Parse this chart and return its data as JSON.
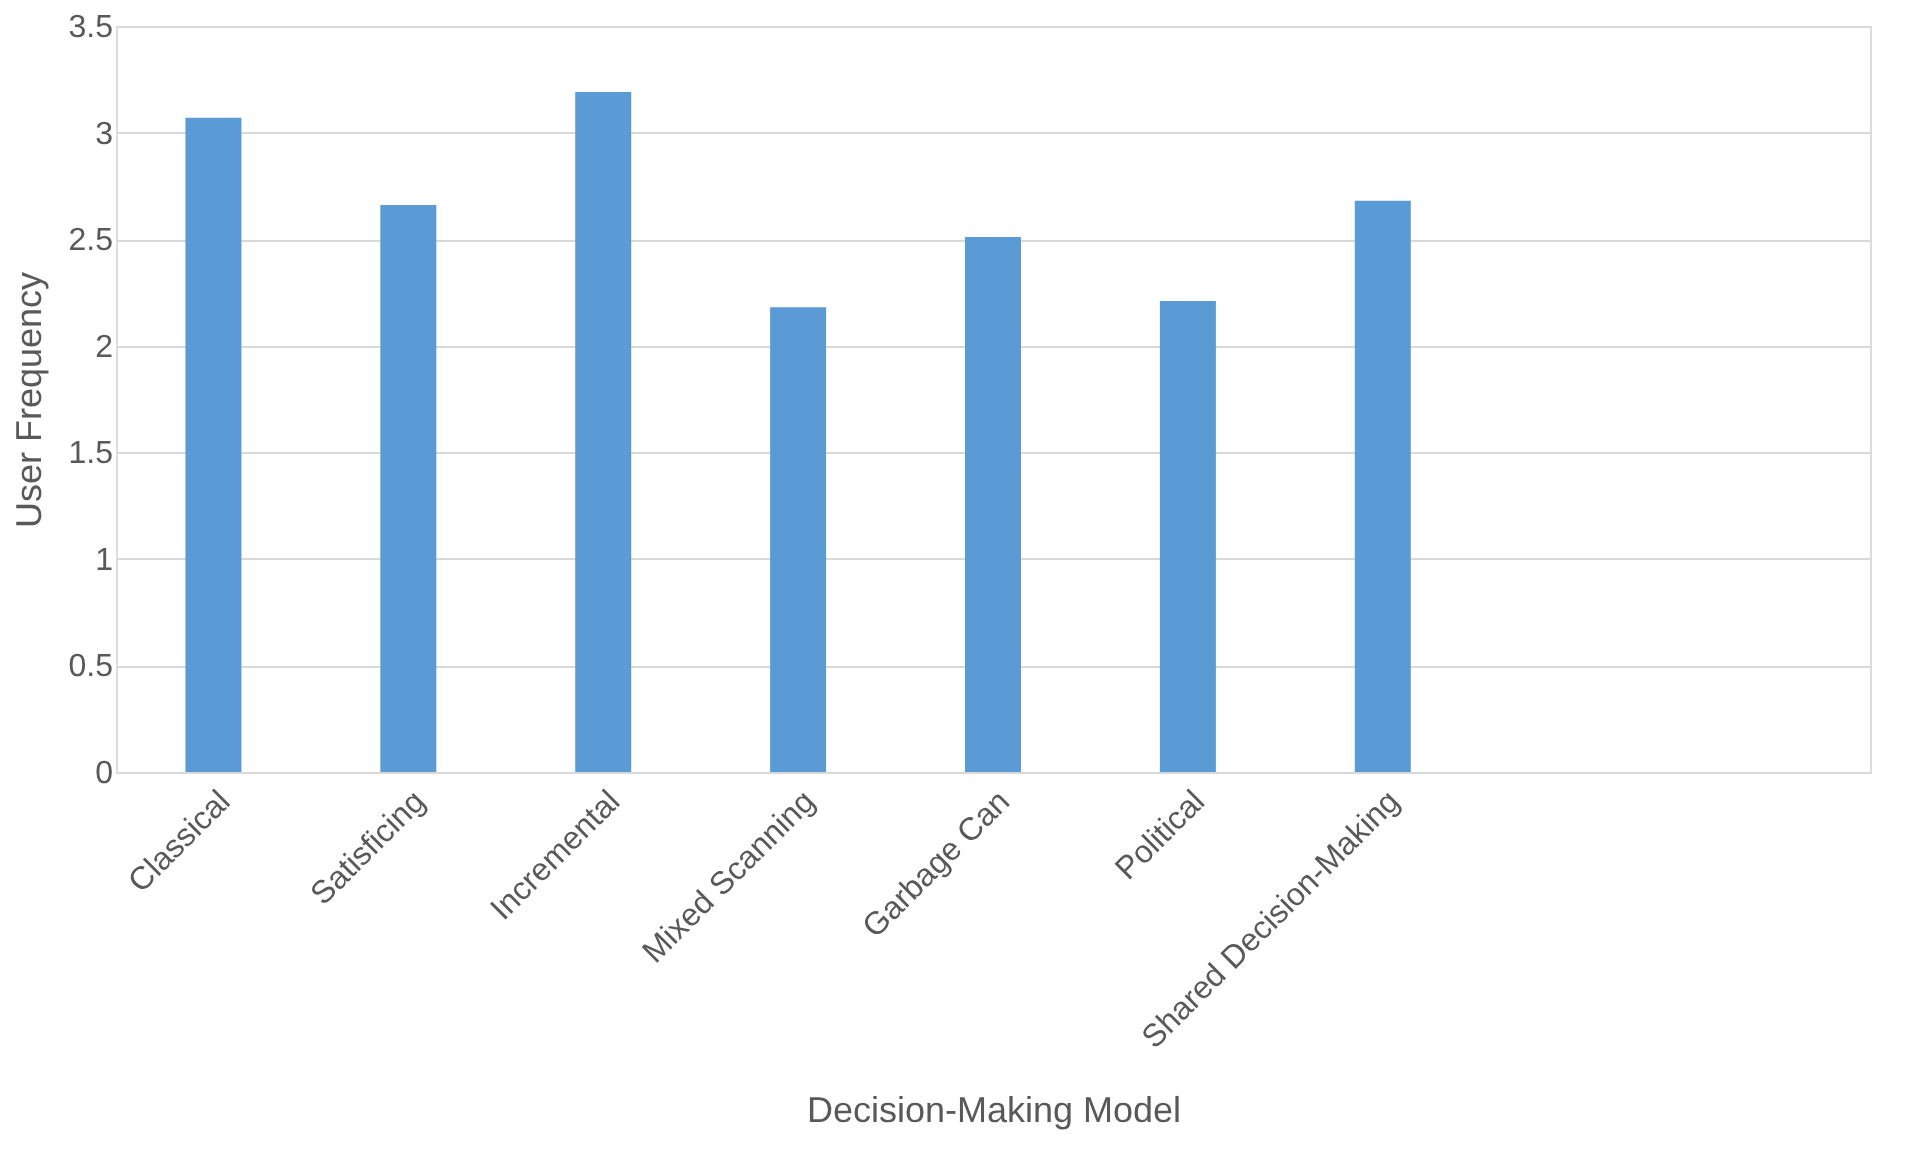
{
  "chart_data": {
    "type": "bar",
    "xlabel": "Decision-Making Model",
    "ylabel": "User Frequency",
    "categories": [
      "Classical",
      "Satisficing",
      "Incremental",
      "Mixed Scanning",
      "Garbage Can",
      "Political",
      "Shared Decision-Making",
      null,
      null
    ],
    "series": [
      {
        "color": "#5b9bd5",
        "values": [
          3.07,
          2.66,
          3.19,
          2.18,
          2.51,
          2.21,
          2.68,
          null,
          null
        ]
      }
    ],
    "ylim": [
      0,
      3.5
    ],
    "yticks": [
      0,
      0.5,
      1,
      1.5,
      2,
      2.5,
      3,
      3.5
    ],
    "grid": "y"
  }
}
